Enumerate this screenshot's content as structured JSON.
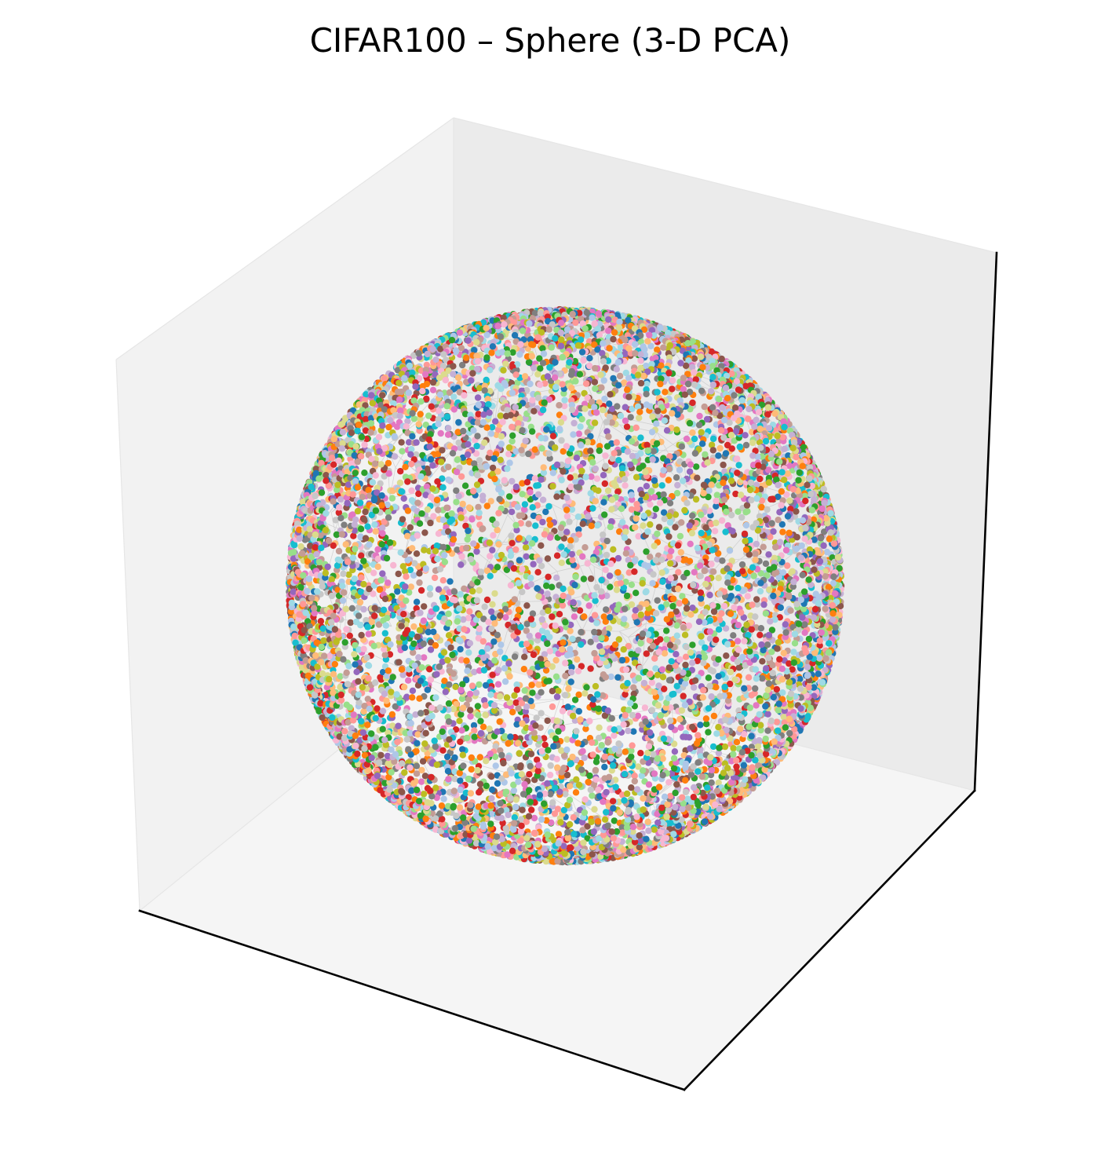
{
  "chart_data": {
    "type": "scatter",
    "title": "CIFAR100 – Sphere (3-D PCA)",
    "projection": "3d",
    "shape": "unit sphere",
    "xlabel": "",
    "ylabel": "",
    "zlabel": "",
    "tick_labels": "none",
    "grid": false,
    "legend": "none",
    "num_points_approx": 10000,
    "palette": [
      "#1f77b4",
      "#aec7e8",
      "#ff7f0e",
      "#ffbb78",
      "#2ca02c",
      "#98df8a",
      "#d62728",
      "#ff9896",
      "#9467bd",
      "#c5b0d5",
      "#8c564b",
      "#c49c94",
      "#e377c2",
      "#f7b6d2",
      "#7f7f7f",
      "#c7c7c7",
      "#bcbd22",
      "#dbdb8d",
      "#17becf",
      "#9edae5"
    ],
    "pane_colors": {
      "left": "#f2f2f2",
      "right": "#ebebeb",
      "floor": "#f5f5f5"
    },
    "mesh_color": "#bbbbbb"
  }
}
